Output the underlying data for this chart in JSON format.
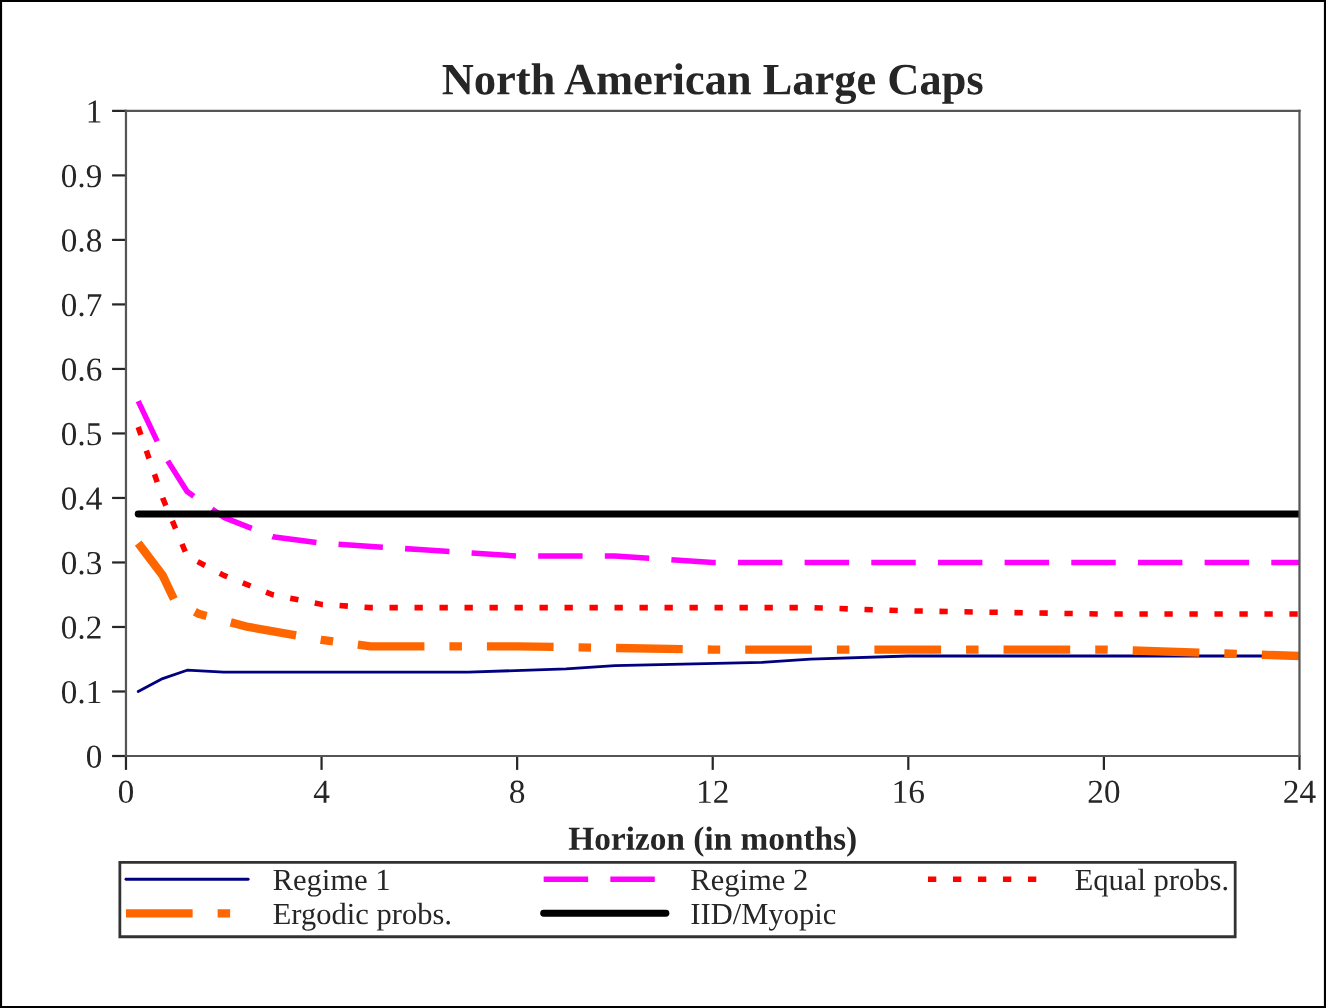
{
  "chart_data": {
    "type": "line",
    "title": "North American Large Caps",
    "xlabel": "Horizon (in months)",
    "xlim": [
      0,
      24
    ],
    "xticks": [
      0,
      4,
      8,
      12,
      16,
      20,
      24
    ],
    "ylim": [
      0,
      1
    ],
    "yticks": [
      0,
      0.1,
      0.2,
      0.3,
      0.4,
      0.5,
      0.6,
      0.7,
      0.8,
      0.9,
      1
    ],
    "grid": false,
    "legend": "bottom",
    "marker": "none",
    "series": [
      {
        "name": "Regime 1",
        "color": "#000080",
        "line_style": "solid",
        "x": [
          0.25,
          0.75,
          1.25,
          2,
          4,
          7,
          9,
          10,
          13,
          14,
          16,
          20,
          24
        ],
        "values": [
          0.1,
          0.12,
          0.133,
          0.13,
          0.13,
          0.13,
          0.135,
          0.14,
          0.145,
          0.15,
          0.155,
          0.155,
          0.155
        ]
      },
      {
        "name": "Regime 2",
        "color": "#ff00ff",
        "line_style": "dashed",
        "x": [
          0.25,
          0.75,
          1.25,
          2,
          3,
          4,
          6,
          8,
          10,
          12,
          16,
          20,
          24
        ],
        "values": [
          0.55,
          0.47,
          0.41,
          0.37,
          0.34,
          0.33,
          0.32,
          0.31,
          0.31,
          0.3,
          0.3,
          0.3,
          0.3
        ]
      },
      {
        "name": "Equal probs.",
        "color": "#ff0000",
        "line_style": "dotted",
        "x": [
          0.25,
          0.75,
          1.25,
          2,
          3,
          4,
          5,
          10,
          14,
          16,
          20,
          24
        ],
        "values": [
          0.51,
          0.4,
          0.31,
          0.28,
          0.25,
          0.235,
          0.23,
          0.23,
          0.23,
          0.225,
          0.22,
          0.22
        ]
      },
      {
        "name": "Ergodic probs.",
        "color": "#ff6600",
        "line_style": "dashdot",
        "x": [
          0.25,
          0.75,
          1,
          1.5,
          2.5,
          4,
          5,
          8,
          12,
          20,
          24
        ],
        "values": [
          0.33,
          0.28,
          0.24,
          0.22,
          0.2,
          0.18,
          0.17,
          0.17,
          0.165,
          0.165,
          0.155
        ]
      },
      {
        "name": "IID/Myopic",
        "color": "#000000",
        "line_style": "solid",
        "x": [
          0.25,
          24
        ],
        "values": [
          0.375,
          0.375
        ]
      }
    ]
  }
}
